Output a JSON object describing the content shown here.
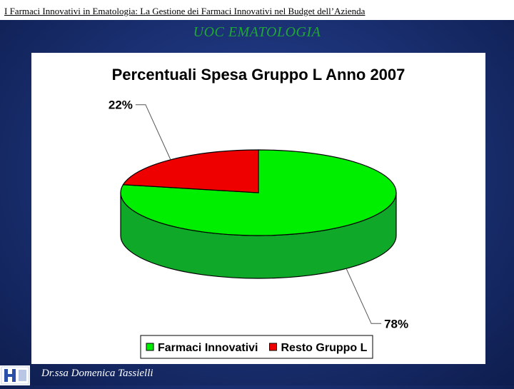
{
  "slide": {
    "header": "I Farmaci Innovativi in Ematologia: La Gestione dei Farmaci Innovativi nel Budget dell’Azienda",
    "subtitle": "UOC EMATOLOGIA",
    "footer_author": "Dr.ssa Domenica Tassielli"
  },
  "chart_data": {
    "type": "pie",
    "title": "Percentuali Spesa Gruppo L Anno 2007",
    "slices": [
      {
        "name": "Farmaci Innovativi",
        "value": 78,
        "label": "78%",
        "color": "#00ee00",
        "dark": "#10a828"
      },
      {
        "name": "Resto Gruppo L",
        "value": 22,
        "label": "22%",
        "color": "#ee0000",
        "dark": "#a00000"
      }
    ],
    "legend_position": "bottom",
    "style": "3d"
  }
}
